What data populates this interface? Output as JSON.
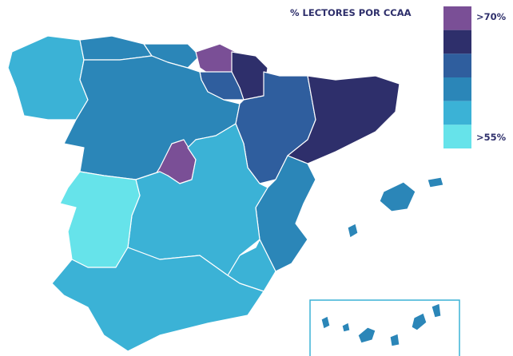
{
  "map": {
    "title": "% LECTORES POR CCAA",
    "legend": {
      "colors": [
        "#7a4f96",
        "#2e2f6b",
        "#2f5e9e",
        "#2b86b8",
        "#3bb2d6",
        "#66e3ea"
      ],
      "top_label": ">70%",
      "bottom_label": ">55%"
    },
    "region_color_index": [
      4,
      3,
      3,
      0,
      1,
      2,
      3,
      0,
      2,
      1,
      3,
      4,
      4,
      5,
      4,
      3,
      3,
      3,
      3,
      3,
      3,
      3,
      3,
      3
    ]
  }
}
